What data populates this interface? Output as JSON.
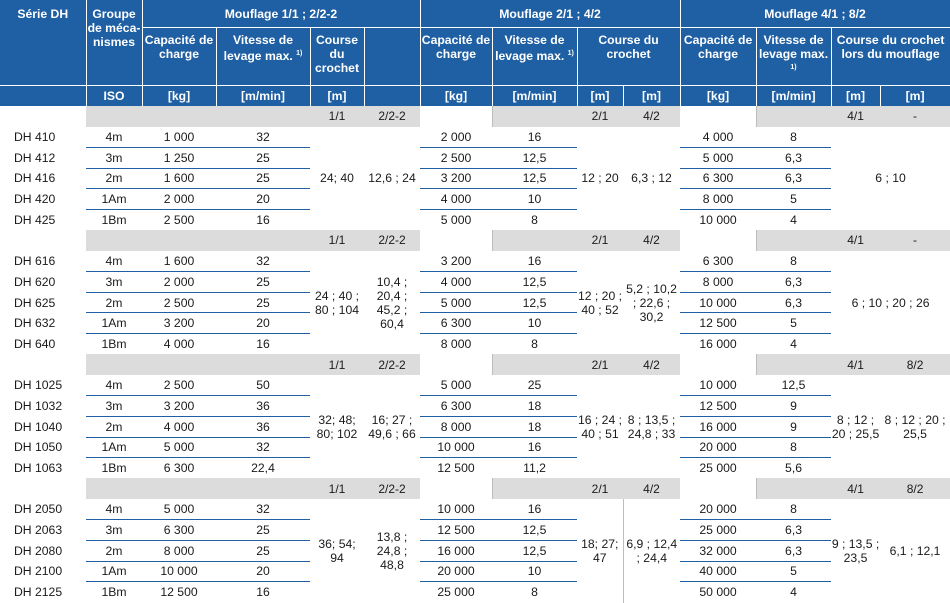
{
  "header": {
    "serie": "Série DH",
    "groupe": "Groupe de méca-nismes",
    "iso": "ISO",
    "mouflage_1": "Mouflage 1/1 ; 2/2-2",
    "mouflage_2": "Mouflage 2/1 ; 4/2",
    "mouflage_4": "Mouflage 4/1 ; 8/2",
    "capacite": "Capacité de charge",
    "vitesse_1": "Vitesse de levage max.",
    "vitesse_2": "Vitesse de levage max.",
    "vitesse_4": "Vitesse de levage max.",
    "footnote": "1)",
    "course_1": "Course du crochet",
    "course_2": "Course du crochet",
    "course_4": "Course du crochet lors du mouflage",
    "unit_kg": "[kg]",
    "unit_mmin": "[m/min]",
    "unit_m": "[m]"
  },
  "groups": [
    {
      "sub": {
        "a1": "1/1",
        "a2": "2/2-2",
        "b1": "2/1",
        "b2": "4/2",
        "c1": "4/1",
        "c2": "-"
      },
      "rows": [
        {
          "serie": "DH 410",
          "iso": "4m",
          "cap1": "1 000",
          "vit1": "32",
          "cap2": "2 000",
          "vit2": "16",
          "cap4": "4 000",
          "vit4": "8"
        },
        {
          "serie": "DH 412",
          "iso": "3m",
          "cap1": "1 250",
          "vit1": "25",
          "cap2": "2 500",
          "vit2": "12,5",
          "cap4": "5 000",
          "vit4": "6,3"
        },
        {
          "serie": "DH 416",
          "iso": "2m",
          "cap1": "1 600",
          "vit1": "25",
          "cap2": "3 200",
          "vit2": "12,5",
          "cap4": "6 300",
          "vit4": "6,3"
        },
        {
          "serie": "DH 420",
          "iso": "1Am",
          "cap1": "2 000",
          "vit1": "20",
          "cap2": "4 000",
          "vit2": "10",
          "cap4": "8 000",
          "vit4": "5"
        },
        {
          "serie": "DH 425",
          "iso": "1Bm",
          "cap1": "2 500",
          "vit1": "16",
          "cap2": "5 000",
          "vit2": "8",
          "cap4": "10 000",
          "vit4": "4"
        }
      ],
      "course_a1": "24; 40",
      "course_a2": "12,6 ; 24",
      "course_b1": "12 ; 20",
      "course_b2": "6,3 ; 12",
      "course_c": "6 ; 10"
    },
    {
      "sub": {
        "a1": "1/1",
        "a2": "2/2-2",
        "b1": "2/1",
        "b2": "4/2",
        "c1": "4/1",
        "c2": "-"
      },
      "rows": [
        {
          "serie": "DH 616",
          "iso": "4m",
          "cap1": "1 600",
          "vit1": "32",
          "cap2": "3 200",
          "vit2": "16",
          "cap4": "6 300",
          "vit4": "8"
        },
        {
          "serie": "DH 620",
          "iso": "3m",
          "cap1": "2 000",
          "vit1": "25",
          "cap2": "4 000",
          "vit2": "12,5",
          "cap4": "8 000",
          "vit4": "6,3"
        },
        {
          "serie": "DH 625",
          "iso": "2m",
          "cap1": "2 500",
          "vit1": "25",
          "cap2": "5 000",
          "vit2": "12,5",
          "cap4": "10 000",
          "vit4": "6,3"
        },
        {
          "serie": "DH 632",
          "iso": "1Am",
          "cap1": "3 200",
          "vit1": "20",
          "cap2": "6 300",
          "vit2": "10",
          "cap4": "12 500",
          "vit4": "5"
        },
        {
          "serie": "DH 640",
          "iso": "1Bm",
          "cap1": "4 000",
          "vit1": "16",
          "cap2": "8 000",
          "vit2": "8",
          "cap4": "16 000",
          "vit4": "4"
        }
      ],
      "course_a1": "24 ; 40 ; 80 ; 104",
      "course_a2": "10,4 ; 20,4 ; 45,2 ; 60,4",
      "course_b1": "12 ; 20 ; 40 ; 52",
      "course_b2": "5,2 ; 10,2 ; 22,6 ; 30,2",
      "course_c": "6 ; 10 ; 20 ; 26"
    },
    {
      "sub": {
        "a1": "1/1",
        "a2": "2/2-2",
        "b1": "2/1",
        "b2": "4/2",
        "c1": "4/1",
        "c2": "8/2"
      },
      "rows": [
        {
          "serie": "DH 1025",
          "iso": "4m",
          "cap1": "2 500",
          "vit1": "50",
          "cap2": "5 000",
          "vit2": "25",
          "cap4": "10 000",
          "vit4": "12,5"
        },
        {
          "serie": "DH 1032",
          "iso": "3m",
          "cap1": "3 200",
          "vit1": "36",
          "cap2": "6 300",
          "vit2": "18",
          "cap4": "12 500",
          "vit4": "9"
        },
        {
          "serie": "DH 1040",
          "iso": "2m",
          "cap1": "4 000",
          "vit1": "36",
          "cap2": "8 000",
          "vit2": "18",
          "cap4": "16 000",
          "vit4": "9"
        },
        {
          "serie": "DH 1050",
          "iso": "1Am",
          "cap1": "5 000",
          "vit1": "32",
          "cap2": "10 000",
          "vit2": "16",
          "cap4": "20 000",
          "vit4": "8"
        },
        {
          "serie": "DH 1063",
          "iso": "1Bm",
          "cap1": "6 300",
          "vit1": "22,4",
          "cap2": "12 500",
          "vit2": "11,2",
          "cap4": "25 000",
          "vit4": "5,6"
        }
      ],
      "course_a1": "32; 48; 80; 102",
      "course_a2": "16; 27 ; 49,6 ; 66",
      "course_b1": "16 ; 24 ; 40 ; 51",
      "course_b2": "8 ; 13,5 ; 24,8 ; 33",
      "course_c1": "8 ; 12 ; 20 ; 25,5",
      "course_c2": "8 ; 12 ; 20 ; 25,5"
    },
    {
      "sub": {
        "a1": "1/1",
        "a2": "2/2-2",
        "b1": "2/1",
        "b2": "4/2",
        "c1": "4/1",
        "c2": "8/2"
      },
      "rows": [
        {
          "serie": "DH 2050",
          "iso": "4m",
          "cap1": "5 000",
          "vit1": "32",
          "cap2": "10 000",
          "vit2": "16",
          "cap4": "20 000",
          "vit4": "8"
        },
        {
          "serie": "DH 2063",
          "iso": "3m",
          "cap1": "6 300",
          "vit1": "25",
          "cap2": "12 500",
          "vit2": "12,5",
          "cap4": "25 000",
          "vit4": "6,3"
        },
        {
          "serie": "DH 2080",
          "iso": "2m",
          "cap1": "8 000",
          "vit1": "25",
          "cap2": "16 000",
          "vit2": "12,5",
          "cap4": "32 000",
          "vit4": "6,3"
        },
        {
          "serie": "DH 2100",
          "iso": "1Am",
          "cap1": "10 000",
          "vit1": "20",
          "cap2": "20 000",
          "vit2": "10",
          "cap4": "40 000",
          "vit4": "5"
        },
        {
          "serie": "DH 2125",
          "iso": "1Bm",
          "cap1": "12 500",
          "vit1": "16",
          "cap2": "25 000",
          "vit2": "8",
          "cap4": "50 000",
          "vit4": "4"
        }
      ],
      "course_a1": "36; 54; 94",
      "course_a2": "13,8 ; 24,8 ; 48,8",
      "course_b1": "18; 27; 47",
      "course_b2": "6,9 ; 12,4 ; 24,4",
      "course_c1": "9 ; 13,5 ; 23,5",
      "course_c2": "6,1 ; 12,1"
    }
  ]
}
